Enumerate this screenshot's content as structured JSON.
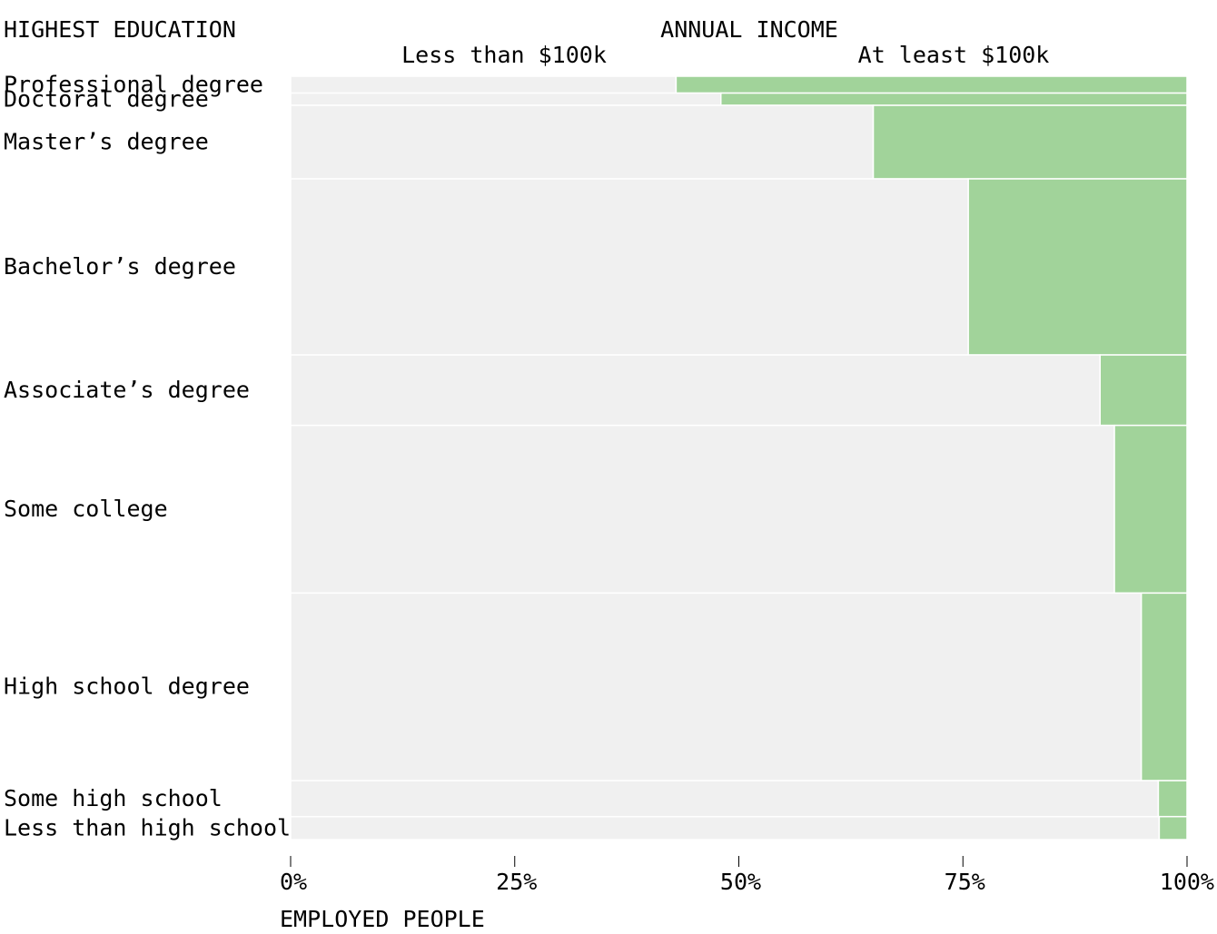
{
  "chart_data": {
    "type": "mosaic",
    "title": "",
    "y_title": "HIGHEST EDUCATION",
    "x_title": "EMPLOYED PEOPLE",
    "column_title": "ANNUAL INCOME",
    "series": [
      {
        "name": "Less than $100k",
        "color": "#f0f0f0"
      },
      {
        "name": "At least $100k",
        "color": "#a1d39a"
      }
    ],
    "categories": [
      "Professional degree",
      "Doctoral degree",
      "Master’s degree",
      "Bachelor’s degree",
      "Associate’s degree",
      "Some college",
      "High school degree",
      "Some high school",
      "Less than high school"
    ],
    "share_of_employed_pct": [
      2.2,
      1.6,
      9.6,
      23.0,
      9.2,
      21.9,
      24.5,
      4.7,
      3.0
    ],
    "at_least_100k_pct": [
      57.0,
      52.0,
      35.0,
      24.4,
      9.7,
      8.1,
      5.1,
      3.2,
      3.1
    ],
    "x_ticks": [
      "0%",
      "25%",
      "50%",
      "75%",
      "100%"
    ],
    "xlim": [
      0,
      100
    ]
  }
}
